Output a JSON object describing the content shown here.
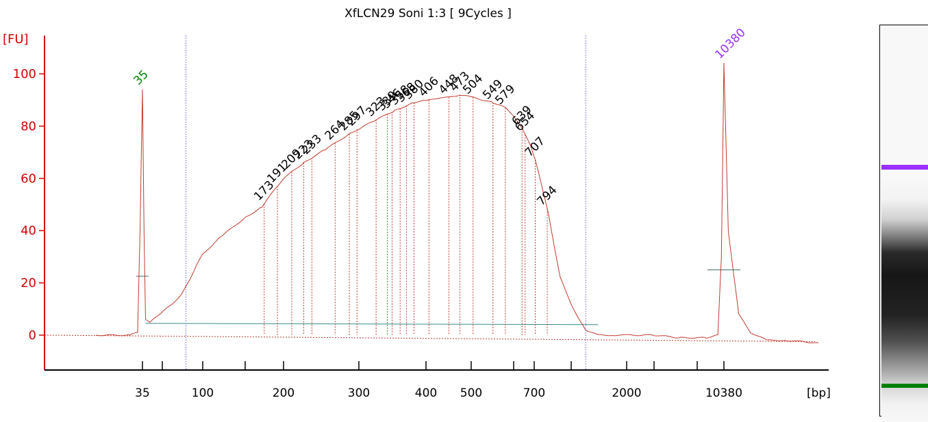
{
  "chart_data": {
    "type": "line",
    "title": "XfLCN29 Soni 1:3  [ 9Cycles ]",
    "ylabel": "[FU]",
    "xlabel": "[bp]",
    "ylim": [
      -13,
      114
    ],
    "yticks": [
      0,
      20,
      40,
      60,
      80,
      100
    ],
    "xticks": [
      "35",
      "100",
      "200",
      "300",
      "400",
      "500",
      "700",
      "2000",
      "10380"
    ],
    "x_scale": "non-linear (ladder calibrated)",
    "ladder_ticks_bp": [
      35,
      50,
      100,
      150,
      200,
      300,
      400,
      500,
      600,
      700,
      1000,
      2000,
      3000,
      7000,
      10380
    ],
    "marker_peaks": [
      {
        "label": "35",
        "bp": 35,
        "fu": 94,
        "color": "#008000"
      },
      {
        "label": "10380",
        "bp": 10380,
        "fu": 104,
        "color": "#9b30ff"
      }
    ],
    "peak_labels": [
      "173",
      "191",
      "209",
      "223",
      "233",
      "264",
      "285",
      "297",
      "323",
      "339",
      "346",
      "358",
      "368",
      "380",
      "406",
      "448",
      "473",
      "504",
      "549",
      "579",
      "639",
      "654",
      "707",
      "794"
    ],
    "smear_region_bp": [
      75,
      1200
    ],
    "series": [
      {
        "x_bp": [
          20,
          30,
          33,
          34,
          35,
          36,
          37,
          40,
          45,
          50,
          60,
          70,
          80,
          90,
          100,
          120,
          150,
          170,
          185,
          200,
          223,
          250,
          285,
          320,
          350,
          380,
          406,
          430,
          448,
          473,
          504,
          549,
          579,
          600,
          639,
          680,
          707,
          750,
          800,
          850,
          900,
          1000,
          1100,
          1200,
          1400,
          1700,
          2000,
          3000,
          5000,
          8000,
          9500,
          10000,
          10380,
          10700,
          11500,
          12500,
          14000,
          16000,
          20000
        ],
        "fu": [
          0,
          0,
          1,
          40,
          94,
          40,
          6,
          5,
          7,
          9,
          12,
          16,
          21,
          27,
          31,
          38,
          45,
          49,
          55,
          60,
          66,
          71,
          77,
          82,
          86,
          89,
          90,
          91,
          91,
          92,
          91,
          89,
          87,
          84,
          79,
          73,
          67,
          58,
          47,
          34,
          22,
          12,
          6,
          2,
          0,
          0,
          0,
          0,
          -1,
          -1,
          0,
          30,
          104,
          40,
          8,
          1,
          -2,
          -2,
          -3
        ]
      }
    ]
  },
  "gel": {
    "upper_marker_color": "#9b30ff",
    "lower_marker_color": "#008000"
  }
}
